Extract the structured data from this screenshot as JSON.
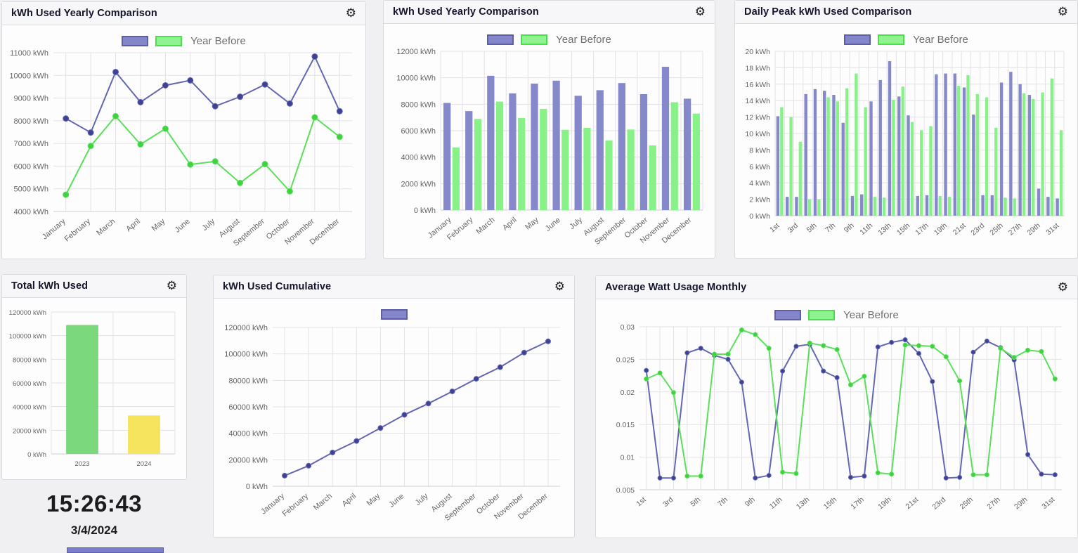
{
  "legend": {
    "year_before_label": "Year Before"
  },
  "clock": {
    "time": "15:26:43",
    "date": "3/4/2024"
  },
  "colors": {
    "series_current": "#6468b4",
    "series_current_point": "#3e418f",
    "series_year_before": "#5ae05a",
    "series_year_before_point": "#3fd13f",
    "bar_current": "#8588ca",
    "bar_year_before": "#88f288",
    "total_2023": "#7cd87c",
    "total_2024": "#f6e45f"
  },
  "chart_data": [
    {
      "key": "kwh-yearly-line",
      "type": "line",
      "title": "kWh Used Yearly Comparison",
      "legend_entries": [
        "",
        "Year Before"
      ],
      "legend_position": "top-center",
      "grid": true,
      "categories": [
        "January",
        "February",
        "March",
        "April",
        "May",
        "June",
        "July",
        "August",
        "September",
        "October",
        "November",
        "December"
      ],
      "series": [
        {
          "name": "",
          "color": "#6468b4",
          "point_color": "#3e418f",
          "values": [
            8100,
            7480,
            10150,
            8820,
            9560,
            9780,
            8640,
            9060,
            9600,
            8760,
            10830,
            8420
          ]
        },
        {
          "name": "Year Before",
          "color": "#5ae05a",
          "point_color": "#3fd13f",
          "values": [
            4740,
            6890,
            8200,
            6960,
            7650,
            6070,
            6210,
            5260,
            6090,
            4890,
            8150,
            7290
          ]
        }
      ],
      "ylim": [
        4000,
        11000
      ],
      "ystep": 1000,
      "ysuffix": " kWh",
      "xtick_every": 1
    },
    {
      "key": "kwh-yearly-bar",
      "type": "bar",
      "title": "kWh Used Yearly Comparison",
      "legend_entries": [
        "",
        "Year Before"
      ],
      "legend_position": "top-center",
      "grid": true,
      "categories": [
        "January",
        "February",
        "March",
        "April",
        "May",
        "June",
        "July",
        "August",
        "September",
        "October",
        "November",
        "December"
      ],
      "series": [
        {
          "name": "",
          "color": "#8588ca",
          "values": [
            8100,
            7480,
            10150,
            8820,
            9560,
            9780,
            8640,
            9060,
            9600,
            8760,
            10830,
            8420
          ]
        },
        {
          "name": "Year Before",
          "color": "#88f288",
          "values": [
            4740,
            6890,
            8200,
            6960,
            7650,
            6070,
            6210,
            5260,
            6090,
            4890,
            8150,
            7290
          ]
        }
      ],
      "ylim": [
        0,
        12000
      ],
      "ystep": 2000,
      "ysuffix": " kWh",
      "xtick_every": 1
    },
    {
      "key": "daily-peak-bar",
      "type": "bar",
      "title": "Daily Peak kWh Used Comparison",
      "legend_entries": [
        "",
        "Year Before"
      ],
      "legend_position": "top-center",
      "grid": true,
      "categories": [
        "1st",
        "2nd",
        "3rd",
        "4th",
        "5th",
        "6th",
        "7th",
        "8th",
        "9th",
        "10th",
        "11th",
        "12th",
        "13th",
        "14th",
        "15th",
        "16th",
        "17th",
        "18th",
        "19th",
        "20th",
        "21st",
        "22nd",
        "23rd",
        "24th",
        "25th",
        "26th",
        "27th",
        "28th",
        "29th",
        "30th",
        "31st"
      ],
      "series": [
        {
          "name": "",
          "color": "#8588ca",
          "values": [
            12.1,
            2.3,
            2.3,
            14.8,
            15.4,
            15.2,
            14.7,
            11.3,
            2.4,
            2.6,
            13.9,
            16.5,
            18.8,
            14.5,
            12.2,
            2.4,
            2.5,
            17.2,
            17.3,
            17.3,
            15.6,
            12.3,
            2.5,
            2.5,
            16.2,
            17.5,
            16.0,
            14.7,
            3.3,
            2.3,
            2.1
          ]
        },
        {
          "name": "Year Before",
          "color": "#88f288",
          "values": [
            13.2,
            12.0,
            9.0,
            2.0,
            2.0,
            14.4,
            13.9,
            15.5,
            17.3,
            13.2,
            2.3,
            2.2,
            14.1,
            15.7,
            11.4,
            10.4,
            10.9,
            2.4,
            2.3,
            15.8,
            17.1,
            14.8,
            14.4,
            10.7,
            2.2,
            2.1,
            14.9,
            14.2,
            15.0,
            16.7,
            10.4
          ]
        }
      ],
      "ylim": [
        0,
        20
      ],
      "ystep": 2,
      "ysuffix": " kWh",
      "xtick_every": 2
    },
    {
      "key": "total-kwh",
      "type": "bar",
      "title": "Total kWh Used",
      "legend_position": "none",
      "grid": true,
      "categories": [
        "2023",
        "2024"
      ],
      "series": [
        {
          "name": "",
          "values": [
            109000,
            32500
          ]
        }
      ],
      "bar_colors": [
        "#7cd87c",
        "#f6e45f"
      ],
      "ylim": [
        0,
        120000
      ],
      "ystep": 20000,
      "ysuffix": " kWh",
      "xtick_every": 1
    },
    {
      "key": "kwh-cumulative",
      "type": "line",
      "title": "kWh Used Cumulative",
      "legend_entries": [
        ""
      ],
      "legend_position": "top-center",
      "grid": true,
      "categories": [
        "January",
        "February",
        "March",
        "April",
        "May",
        "June",
        "July",
        "August",
        "September",
        "October",
        "November",
        "December"
      ],
      "series": [
        {
          "name": "",
          "color": "#6468b4",
          "point_color": "#3e418f",
          "values": [
            8000,
            15500,
            25500,
            34200,
            44000,
            54000,
            62500,
            71700,
            81200,
            90000,
            101000,
            109500
          ]
        }
      ],
      "ylim": [
        0,
        120000
      ],
      "ystep": 20000,
      "ysuffix": " kWh",
      "xtick_every": 1
    },
    {
      "key": "avg-watt-monthly",
      "type": "line",
      "title": "Average Watt Usage Monthly",
      "legend_entries": [
        "",
        "Year Before"
      ],
      "legend_position": "top-center",
      "grid": true,
      "categories": [
        "1st",
        "2nd",
        "3rd",
        "4th",
        "5th",
        "6th",
        "7th",
        "8th",
        "9th",
        "10th",
        "11th",
        "12th",
        "13th",
        "14th",
        "15th",
        "16th",
        "17th",
        "18th",
        "19th",
        "20th",
        "21st",
        "22nd",
        "23rd",
        "24th",
        "25th",
        "26th",
        "27th",
        "28th",
        "29th",
        "30th",
        "31st"
      ],
      "series": [
        {
          "name": "",
          "color": "#6468b4",
          "point_color": "#3e418f",
          "values": [
            0.0233,
            0.0068,
            0.0068,
            0.026,
            0.0267,
            0.0256,
            0.025,
            0.0215,
            0.0068,
            0.0072,
            0.0232,
            0.027,
            0.0273,
            0.0232,
            0.0222,
            0.0069,
            0.0071,
            0.0269,
            0.0276,
            0.028,
            0.0259,
            0.0216,
            0.0068,
            0.0069,
            0.0261,
            0.0278,
            0.0268,
            0.0249,
            0.0104,
            0.0074,
            0.0073
          ]
        },
        {
          "name": "Year Before",
          "color": "#5ae05a",
          "point_color": "#3fd13f",
          "values": [
            0.022,
            0.0229,
            0.0199,
            0.0071,
            0.0071,
            0.0258,
            0.0258,
            0.0295,
            0.0288,
            0.0267,
            0.0077,
            0.0075,
            0.0275,
            0.0271,
            0.0265,
            0.0211,
            0.0224,
            0.0076,
            0.0074,
            0.0272,
            0.0271,
            0.027,
            0.0254,
            0.0217,
            0.0073,
            0.0073,
            0.0267,
            0.0253,
            0.0264,
            0.0262,
            0.022
          ]
        }
      ],
      "ylim": [
        0.005,
        0.03
      ],
      "ystep": 0.005,
      "ydecimals": 3,
      "ysuffix": "",
      "xtick_every": 2
    }
  ]
}
